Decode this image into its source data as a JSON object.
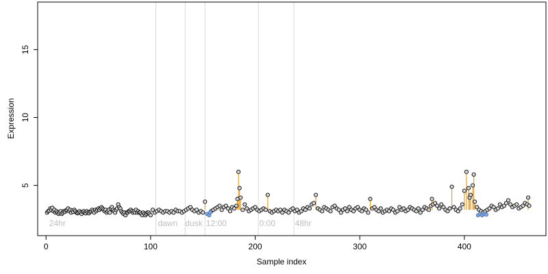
{
  "chart_data": {
    "type": "scatter",
    "xlabel": "Sample index",
    "ylabel": "Expression",
    "xlim": [
      -8,
      478
    ],
    "ylim": [
      1.3,
      18.5
    ],
    "x_ticks": [
      0,
      100,
      200,
      300,
      400
    ],
    "y_ticks": [
      5,
      10,
      15
    ],
    "baseline": 3.2,
    "region_lines": [
      105,
      133,
      152,
      203,
      237
    ],
    "region_labels": [
      {
        "text": "24hr",
        "x": 3,
        "y": 2.0
      },
      {
        "text": "dawn",
        "x": 107,
        "y": 2.0
      },
      {
        "text": "dusk",
        "x": 133,
        "y": 2.0
      },
      {
        "text": "12:00",
        "x": 153,
        "y": 2.0
      },
      {
        "text": "0:00",
        "x": 204,
        "y": 2.0
      },
      {
        "text": "48hr",
        "x": 238,
        "y": 2.0
      }
    ],
    "highlight_spikes": [
      {
        "x": 152,
        "y": 3.8
      },
      {
        "x": 183,
        "y": 4.0
      },
      {
        "x": 184,
        "y": 6.0
      },
      {
        "x": 185,
        "y": 4.8
      },
      {
        "x": 186,
        "y": 4.1
      },
      {
        "x": 212,
        "y": 4.3
      },
      {
        "x": 258,
        "y": 4.3
      },
      {
        "x": 310,
        "y": 4.0
      },
      {
        "x": 369,
        "y": 4.0
      },
      {
        "x": 388,
        "y": 4.9
      },
      {
        "x": 400,
        "y": 4.6
      },
      {
        "x": 402,
        "y": 6.0
      },
      {
        "x": 404,
        "y": 4.8
      },
      {
        "x": 405,
        "y": 4.1
      },
      {
        "x": 406,
        "y": 4.3
      },
      {
        "x": 408,
        "y": 5.0
      },
      {
        "x": 409,
        "y": 5.8
      },
      {
        "x": 410,
        "y": 3.8
      },
      {
        "x": 461,
        "y": 4.1
      }
    ],
    "blue_points": [
      {
        "x": 154,
        "y": 2.9
      },
      {
        "x": 156,
        "y": 2.8
      },
      {
        "x": 157,
        "y": 3.0
      },
      {
        "x": 413,
        "y": 2.8
      },
      {
        "x": 415,
        "y": 2.9
      },
      {
        "x": 417,
        "y": 2.8
      },
      {
        "x": 419,
        "y": 2.9
      },
      {
        "x": 421,
        "y": 2.85
      }
    ],
    "series_points": [
      [
        1,
        3.0
      ],
      [
        2,
        3.1
      ],
      [
        3,
        3.15
      ],
      [
        4,
        3.3
      ],
      [
        5,
        3.2
      ],
      [
        6,
        3.35
      ],
      [
        7,
        3.1
      ],
      [
        8,
        3.2
      ],
      [
        9,
        3.0
      ],
      [
        10,
        3.1
      ],
      [
        11,
        3.0
      ],
      [
        12,
        2.9
      ],
      [
        13,
        3.0
      ],
      [
        14,
        3.1
      ],
      [
        15,
        2.9
      ],
      [
        16,
        3.0
      ],
      [
        17,
        3.1
      ],
      [
        18,
        3.05
      ],
      [
        19,
        3.15
      ],
      [
        20,
        3.2
      ],
      [
        21,
        3.3
      ],
      [
        22,
        3.1
      ],
      [
        23,
        3.2
      ],
      [
        24,
        3.0
      ],
      [
        25,
        3.15
      ],
      [
        26,
        3.05
      ],
      [
        27,
        3.2
      ],
      [
        28,
        3.1
      ],
      [
        29,
        3.0
      ],
      [
        30,
        2.95
      ],
      [
        31,
        3.0
      ],
      [
        32,
        3.1
      ],
      [
        33,
        3.0
      ],
      [
        34,
        2.9
      ],
      [
        35,
        3.05
      ],
      [
        36,
        3.1
      ],
      [
        37,
        3.0
      ],
      [
        38,
        2.95
      ],
      [
        39,
        3.1
      ],
      [
        40,
        3.0
      ],
      [
        41,
        2.95
      ],
      [
        42,
        3.05
      ],
      [
        43,
        3.1
      ],
      [
        44,
        3.2
      ],
      [
        45,
        3.1
      ],
      [
        46,
        3.0
      ],
      [
        47,
        3.2
      ],
      [
        48,
        3.1
      ],
      [
        49,
        3.2
      ],
      [
        50,
        3.3
      ],
      [
        51,
        3.2
      ],
      [
        52,
        3.3
      ],
      [
        53,
        3.4
      ],
      [
        54,
        3.3
      ],
      [
        55,
        3.2
      ],
      [
        56,
        3.1
      ],
      [
        57,
        3.2
      ],
      [
        58,
        3.0
      ],
      [
        59,
        3.1
      ],
      [
        60,
        3.2
      ],
      [
        61,
        3.0
      ],
      [
        62,
        3.3
      ],
      [
        63,
        3.4
      ],
      [
        64,
        3.2
      ],
      [
        65,
        3.1
      ],
      [
        66,
        3.0
      ],
      [
        67,
        3.2
      ],
      [
        68,
        3.3
      ],
      [
        69,
        3.6
      ],
      [
        70,
        3.4
      ],
      [
        71,
        3.3
      ],
      [
        72,
        3.1
      ],
      [
        73,
        3.0
      ],
      [
        74,
        2.9
      ],
      [
        75,
        3.0
      ],
      [
        76,
        2.8
      ],
      [
        77,
        3.0
      ],
      [
        78,
        3.0
      ],
      [
        79,
        3.1
      ],
      [
        80,
        3.1
      ],
      [
        81,
        3.2
      ],
      [
        82,
        3.1
      ],
      [
        83,
        3.0
      ],
      [
        84,
        3.1
      ],
      [
        85,
        3.0
      ],
      [
        86,
        3.2
      ],
      [
        87,
        3.0
      ],
      [
        88,
        3.1
      ],
      [
        89,
        3.0
      ],
      [
        90,
        3.0
      ],
      [
        91,
        2.9
      ],
      [
        92,
        2.8
      ],
      [
        93,
        3.0
      ],
      [
        94,
        2.9
      ],
      [
        95,
        2.8
      ],
      [
        96,
        2.9
      ],
      [
        97,
        3.0
      ],
      [
        98,
        3.0
      ],
      [
        99,
        2.9
      ],
      [
        100,
        2.8
      ],
      [
        102,
        3.2
      ],
      [
        104,
        3.0
      ],
      [
        106,
        3.1
      ],
      [
        108,
        3.2
      ],
      [
        110,
        3.1
      ],
      [
        112,
        3.0
      ],
      [
        114,
        3.1
      ],
      [
        116,
        3.1
      ],
      [
        118,
        3.0
      ],
      [
        120,
        3.1
      ],
      [
        122,
        3.0
      ],
      [
        124,
        3.2
      ],
      [
        126,
        3.1
      ],
      [
        128,
        3.1
      ],
      [
        130,
        3.0
      ],
      [
        132,
        3.1
      ],
      [
        134,
        3.2
      ],
      [
        136,
        3.3
      ],
      [
        138,
        3.4
      ],
      [
        140,
        3.2
      ],
      [
        142,
        3.1
      ],
      [
        144,
        3.2
      ],
      [
        146,
        3.0
      ],
      [
        148,
        3.1
      ],
      [
        150,
        3.0
      ],
      [
        158,
        3.1
      ],
      [
        160,
        3.2
      ],
      [
        162,
        3.3
      ],
      [
        164,
        3.4
      ],
      [
        166,
        3.5
      ],
      [
        168,
        3.2
      ],
      [
        170,
        3.4
      ],
      [
        172,
        3.5
      ],
      [
        174,
        3.3
      ],
      [
        176,
        3.1
      ],
      [
        178,
        3.4
      ],
      [
        180,
        3.3
      ],
      [
        182,
        3.5
      ],
      [
        188,
        3.2
      ],
      [
        190,
        3.6
      ],
      [
        192,
        3.3
      ],
      [
        194,
        3.1
      ],
      [
        196,
        3.2
      ],
      [
        198,
        3.3
      ],
      [
        200,
        3.4
      ],
      [
        202,
        3.2
      ],
      [
        204,
        3.1
      ],
      [
        206,
        3.2
      ],
      [
        208,
        3.3
      ],
      [
        210,
        3.2
      ],
      [
        214,
        3.1
      ],
      [
        216,
        3.0
      ],
      [
        218,
        3.1
      ],
      [
        220,
        3.2
      ],
      [
        222,
        3.1
      ],
      [
        224,
        3.2
      ],
      [
        226,
        3.0
      ],
      [
        228,
        3.2
      ],
      [
        230,
        3.1
      ],
      [
        232,
        3.0
      ],
      [
        234,
        3.2
      ],
      [
        236,
        3.3
      ],
      [
        238,
        3.1
      ],
      [
        240,
        3.2
      ],
      [
        242,
        3.0
      ],
      [
        244,
        3.1
      ],
      [
        246,
        3.3
      ],
      [
        248,
        3.2
      ],
      [
        250,
        3.4
      ],
      [
        252,
        3.3
      ],
      [
        254,
        3.6
      ],
      [
        256,
        3.7
      ],
      [
        260,
        3.3
      ],
      [
        262,
        3.2
      ],
      [
        264,
        3.1
      ],
      [
        266,
        3.4
      ],
      [
        268,
        3.3
      ],
      [
        270,
        3.2
      ],
      [
        272,
        3.1
      ],
      [
        274,
        3.4
      ],
      [
        276,
        3.5
      ],
      [
        278,
        3.3
      ],
      [
        280,
        3.2
      ],
      [
        282,
        3.0
      ],
      [
        284,
        3.2
      ],
      [
        286,
        3.3
      ],
      [
        288,
        3.1
      ],
      [
        290,
        3.4
      ],
      [
        292,
        3.2
      ],
      [
        294,
        3.1
      ],
      [
        296,
        3.3
      ],
      [
        298,
        3.4
      ],
      [
        300,
        3.2
      ],
      [
        302,
        3.1
      ],
      [
        304,
        3.3
      ],
      [
        306,
        3.2
      ],
      [
        308,
        3.0
      ],
      [
        312,
        3.3
      ],
      [
        314,
        3.4
      ],
      [
        316,
        3.2
      ],
      [
        318,
        3.1
      ],
      [
        320,
        3.3
      ],
      [
        322,
        3.0
      ],
      [
        324,
        3.1
      ],
      [
        326,
        3.2
      ],
      [
        328,
        3.1
      ],
      [
        330,
        3.3
      ],
      [
        332,
        3.2
      ],
      [
        334,
        3.0
      ],
      [
        336,
        3.1
      ],
      [
        338,
        3.4
      ],
      [
        340,
        3.2
      ],
      [
        342,
        3.3
      ],
      [
        344,
        3.1
      ],
      [
        346,
        3.2
      ],
      [
        348,
        3.4
      ],
      [
        350,
        3.3
      ],
      [
        352,
        3.2
      ],
      [
        354,
        3.1
      ],
      [
        356,
        3.3
      ],
      [
        358,
        3.0
      ],
      [
        360,
        3.2
      ],
      [
        362,
        3.4
      ],
      [
        364,
        3.3
      ],
      [
        366,
        3.2
      ],
      [
        368,
        3.5
      ],
      [
        370,
        3.6
      ],
      [
        372,
        3.7
      ],
      [
        374,
        3.5
      ],
      [
        376,
        3.3
      ],
      [
        378,
        3.6
      ],
      [
        380,
        3.4
      ],
      [
        382,
        3.2
      ],
      [
        384,
        3.1
      ],
      [
        386,
        3.3
      ],
      [
        390,
        3.4
      ],
      [
        392,
        3.2
      ],
      [
        394,
        3.1
      ],
      [
        396,
        3.3
      ],
      [
        398,
        3.6
      ],
      [
        412,
        3.4
      ],
      [
        414,
        3.2
      ],
      [
        416,
        3.1
      ],
      [
        418,
        3.0
      ],
      [
        420,
        3.1
      ],
      [
        422,
        3.2
      ],
      [
        424,
        3.3
      ],
      [
        426,
        3.5
      ],
      [
        428,
        3.4
      ],
      [
        430,
        3.2
      ],
      [
        432,
        3.3
      ],
      [
        434,
        3.6
      ],
      [
        436,
        3.4
      ],
      [
        438,
        3.5
      ],
      [
        440,
        3.7
      ],
      [
        442,
        3.9
      ],
      [
        444,
        3.6
      ],
      [
        446,
        3.4
      ],
      [
        448,
        3.5
      ],
      [
        450,
        3.6
      ],
      [
        452,
        3.3
      ],
      [
        454,
        3.4
      ],
      [
        456,
        3.5
      ],
      [
        458,
        3.7
      ],
      [
        460,
        3.6
      ],
      [
        462,
        3.5
      ]
    ],
    "colors": {
      "spike": "#f0a020",
      "blue": "#7ea6e0",
      "point_fill": "#d9d9d9",
      "point_stroke": "#000000",
      "region_line": "#d9d9d9"
    }
  }
}
